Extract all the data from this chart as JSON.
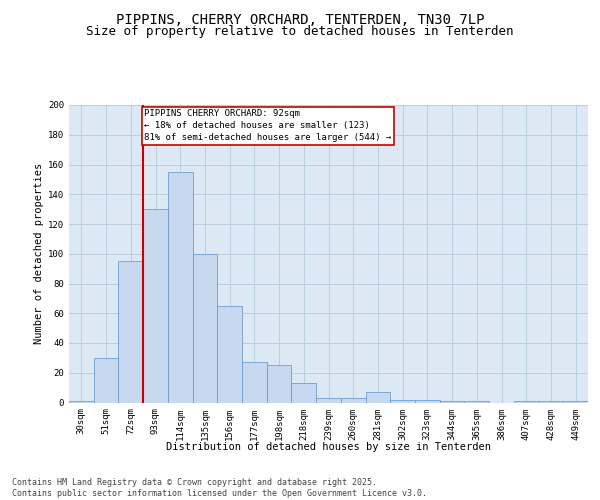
{
  "title_line1": "PIPPINS, CHERRY ORCHARD, TENTERDEN, TN30 7LP",
  "title_line2": "Size of property relative to detached houses in Tenterden",
  "xlabel": "Distribution of detached houses by size in Tenterden",
  "ylabel": "Number of detached properties",
  "categories": [
    "30sqm",
    "51sqm",
    "72sqm",
    "93sqm",
    "114sqm",
    "135sqm",
    "156sqm",
    "177sqm",
    "198sqm",
    "218sqm",
    "239sqm",
    "260sqm",
    "281sqm",
    "302sqm",
    "323sqm",
    "344sqm",
    "365sqm",
    "386sqm",
    "407sqm",
    "428sqm",
    "449sqm"
  ],
  "values": [
    1,
    30,
    95,
    130,
    155,
    100,
    65,
    27,
    25,
    13,
    3,
    3,
    7,
    2,
    2,
    1,
    1,
    0,
    1,
    1,
    1
  ],
  "bar_color": "#c8d8ee",
  "bar_edge_color": "#6b9fd4",
  "line_color": "#cc0000",
  "line_x_index": 3,
  "annotation_box_text": "PIPPINS CHERRY ORCHARD: 92sqm\n← 18% of detached houses are smaller (123)\n81% of semi-detached houses are larger (544) →",
  "annotation_box_color": "#cc0000",
  "ylim": [
    0,
    200
  ],
  "yticks": [
    0,
    20,
    40,
    60,
    80,
    100,
    120,
    140,
    160,
    180,
    200
  ],
  "grid_color": "#b8cfe0",
  "background_color": "#dce8f4",
  "footer_text": "Contains HM Land Registry data © Crown copyright and database right 2025.\nContains public sector information licensed under the Open Government Licence v3.0.",
  "title_fontsize": 10,
  "subtitle_fontsize": 9,
  "label_fontsize": 7.5,
  "tick_fontsize": 6.5,
  "footer_fontsize": 6,
  "ann_fontsize": 6.5
}
